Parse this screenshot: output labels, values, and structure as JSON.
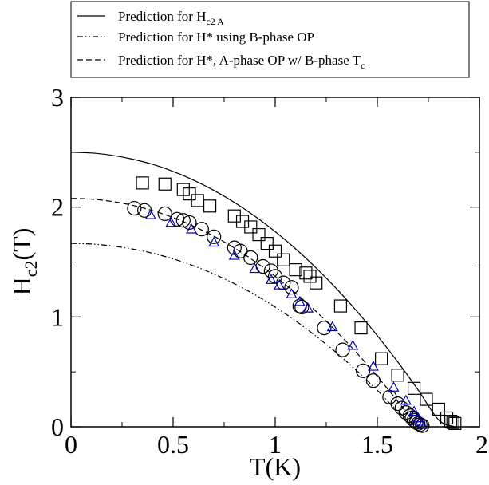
{
  "chart_data": {
    "type": "scatter",
    "title": "",
    "xlabel": "T(K)",
    "ylabel_main": "H",
    "ylabel_sub": "c2",
    "ylabel_suffix": "(T)",
    "xlim": [
      0,
      2
    ],
    "ylim": [
      0,
      3
    ],
    "x_ticks": [
      {
        "value": 0,
        "label": "0"
      },
      {
        "value": 0.5,
        "label": "0.5"
      },
      {
        "value": 1,
        "label": "1"
      },
      {
        "value": 1.5,
        "label": "1.5"
      },
      {
        "value": 2,
        "label": "2"
      }
    ],
    "y_ticks": [
      {
        "value": 0,
        "label": "0"
      },
      {
        "value": 1,
        "label": "1"
      },
      {
        "value": 2,
        "label": "2"
      },
      {
        "value": 3,
        "label": "3"
      }
    ],
    "grid": false,
    "legend_position": "top, above plot",
    "curves": [
      {
        "legend_text": "Prediction for  H",
        "legend_sub": "c2 A",
        "legend_suffix": "",
        "style": "solid",
        "color": "#000000",
        "x": [
          0,
          0.1,
          0.2,
          0.3,
          0.4,
          0.5,
          0.6,
          0.7,
          0.8,
          0.9,
          1.0,
          1.1,
          1.2,
          1.3,
          1.4,
          1.5,
          1.6,
          1.7,
          1.8,
          1.88
        ],
        "y": [
          2.5,
          2.493,
          2.472,
          2.437,
          2.389,
          2.325,
          2.246,
          2.152,
          2.043,
          1.918,
          1.777,
          1.62,
          1.447,
          1.258,
          1.052,
          0.83,
          0.591,
          0.335,
          0.063,
          0.0
        ]
      },
      {
        "legend_text": "Prediction for H* using B-phase OP",
        "legend_sub": "",
        "legend_suffix": "",
        "style": "dash-dot-dot",
        "color": "#000000",
        "x": [
          0,
          0.1,
          0.2,
          0.3,
          0.4,
          0.5,
          0.6,
          0.7,
          0.8,
          0.9,
          1.0,
          1.1,
          1.2,
          1.3,
          1.4,
          1.5,
          1.6,
          1.7,
          1.72
        ],
        "y": [
          1.67,
          1.664,
          1.647,
          1.619,
          1.58,
          1.529,
          1.466,
          1.391,
          1.303,
          1.203,
          1.09,
          0.964,
          0.825,
          0.674,
          0.509,
          0.332,
          0.142,
          0.0,
          0.0
        ]
      },
      {
        "legend_text": "Prediction for  H*, A-phase OP w/ B-phase T",
        "legend_sub": "c",
        "legend_suffix": "",
        "style": "dashed",
        "color": "#000000",
        "x": [
          0,
          0.1,
          0.2,
          0.3,
          0.4,
          0.5,
          0.6,
          0.7,
          0.8,
          0.9,
          1.0,
          1.1,
          1.2,
          1.3,
          1.4,
          1.5,
          1.6,
          1.7,
          1.72
        ],
        "y": [
          2.08,
          2.073,
          2.052,
          2.017,
          1.968,
          1.905,
          1.827,
          1.735,
          1.628,
          1.506,
          1.369,
          1.217,
          1.05,
          0.868,
          0.671,
          0.459,
          0.231,
          0.0,
          0.0
        ]
      }
    ],
    "series": [
      {
        "marker": "square",
        "color": "#000000",
        "x": [
          0.35,
          0.46,
          0.55,
          0.58,
          0.62,
          0.68,
          0.8,
          0.84,
          0.88,
          0.92,
          0.96,
          1.0,
          1.04,
          1.1,
          1.15,
          1.17,
          1.2,
          1.32,
          1.42,
          1.52,
          1.6,
          1.68,
          1.74,
          1.8,
          1.84,
          1.86,
          1.87,
          1.88
        ],
        "y": [
          2.22,
          2.21,
          2.16,
          2.12,
          2.06,
          2.01,
          1.92,
          1.87,
          1.82,
          1.75,
          1.67,
          1.6,
          1.52,
          1.43,
          1.4,
          1.37,
          1.31,
          1.1,
          0.9,
          0.62,
          0.47,
          0.35,
          0.25,
          0.16,
          0.08,
          0.05,
          0.04,
          0.03
        ]
      },
      {
        "marker": "circle",
        "color": "#000000",
        "x": [
          0.31,
          0.36,
          0.46,
          0.52,
          0.55,
          0.58,
          0.64,
          0.7,
          0.8,
          0.83,
          0.88,
          0.94,
          0.98,
          1.0,
          1.04,
          1.08,
          1.12,
          1.13,
          1.24,
          1.33,
          1.43,
          1.48,
          1.56,
          1.6,
          1.62,
          1.64,
          1.66,
          1.67,
          1.68,
          1.69,
          1.7,
          1.71,
          1.72
        ],
        "y": [
          1.99,
          1.97,
          1.94,
          1.89,
          1.88,
          1.86,
          1.8,
          1.73,
          1.63,
          1.6,
          1.54,
          1.46,
          1.42,
          1.37,
          1.31,
          1.27,
          1.1,
          1.09,
          0.9,
          0.7,
          0.51,
          0.42,
          0.27,
          0.21,
          0.17,
          0.13,
          0.1,
          0.08,
          0.06,
          0.04,
          0.03,
          0.02,
          0.01
        ]
      },
      {
        "marker": "triangle",
        "color": "#0000b4",
        "x": [
          0.39,
          0.49,
          0.59,
          0.7,
          0.8,
          0.9,
          0.98,
          1.02,
          1.08,
          1.12,
          1.16,
          1.28,
          1.38,
          1.48,
          1.58,
          1.64,
          1.68,
          1.7,
          1.71,
          1.72
        ],
        "y": [
          1.93,
          1.86,
          1.8,
          1.68,
          1.56,
          1.44,
          1.34,
          1.29,
          1.21,
          1.14,
          1.08,
          0.91,
          0.74,
          0.55,
          0.36,
          0.24,
          0.14,
          0.08,
          0.05,
          0.02
        ]
      }
    ]
  }
}
